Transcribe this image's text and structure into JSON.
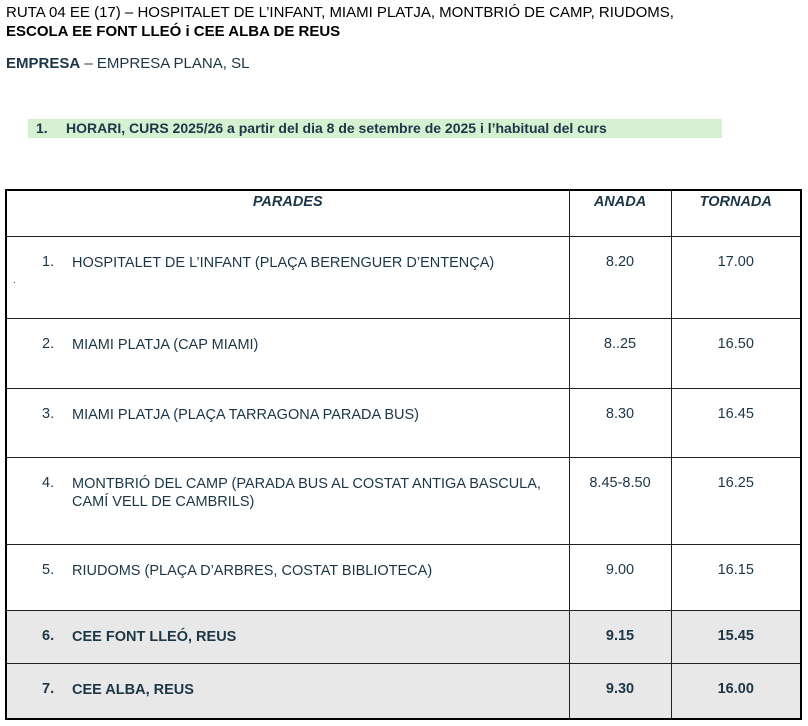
{
  "header": {
    "line1": "RUTA 04 EE (17) – HOSPITALET DE L’INFANT, MIAMI PLATJA, MONTBRIÓ DE CAMP, RIUDOMS,",
    "line2": "ESCOLA EE FONT LLEÓ i CEE ALBA DE REUS",
    "company_label": "EMPRESA",
    "company_value": " – EMPRESA PLANA, SL"
  },
  "section": {
    "number": "1.",
    "title": "HORARI, CURS 2025/26 a partir del dia 8 de setembre de 2025 i l’habitual del curs"
  },
  "table": {
    "columns": [
      "PARADES",
      "ANADA",
      "TORNADA"
    ],
    "rows": [
      {
        "num": "1.",
        "stop": "HOSPITALET DE L’INFANT (PLAÇA BERENGUER D’ENTENÇA)",
        "anada": "8.20",
        "tornada": "17.00",
        "note": "."
      },
      {
        "num": "2.",
        "stop": "MIAMI PLATJA (CAP MIAMI)",
        "anada": "8..25",
        "tornada": "16.50"
      },
      {
        "num": "3.",
        "stop": "MIAMI PLATJA (PLAÇA TARRAGONA PARADA BUS)",
        "anada": "8.30",
        "tornada": "16.45"
      },
      {
        "num": "4.",
        "stop": "MONTBRIÓ DEL CAMP (PARADA BUS AL COSTAT ANTIGA BASCULA, CAMÍ VELL DE CAMBRILS)",
        "anada": "8.45-8.50",
        "tornada": "16.25"
      },
      {
        "num": "5.",
        "stop": "RIUDOMS (PLAÇA D’ARBRES, COSTAT BIBLIOTECA)",
        "anada": "9.00",
        "tornada": "16.15"
      },
      {
        "num": "6.",
        "stop": "CEE FONT LLEÓ, REUS",
        "anada": "9.15",
        "tornada": "15.45",
        "highlight": true
      },
      {
        "num": "7.",
        "stop": "CEE ALBA, REUS",
        "anada": "9.30",
        "tornada": "16.00",
        "highlight": true
      }
    ]
  },
  "colors": {
    "text": "#1c3646",
    "section_bg": "#d6f0d2",
    "highlight_row_bg": "#e8e8e8"
  }
}
